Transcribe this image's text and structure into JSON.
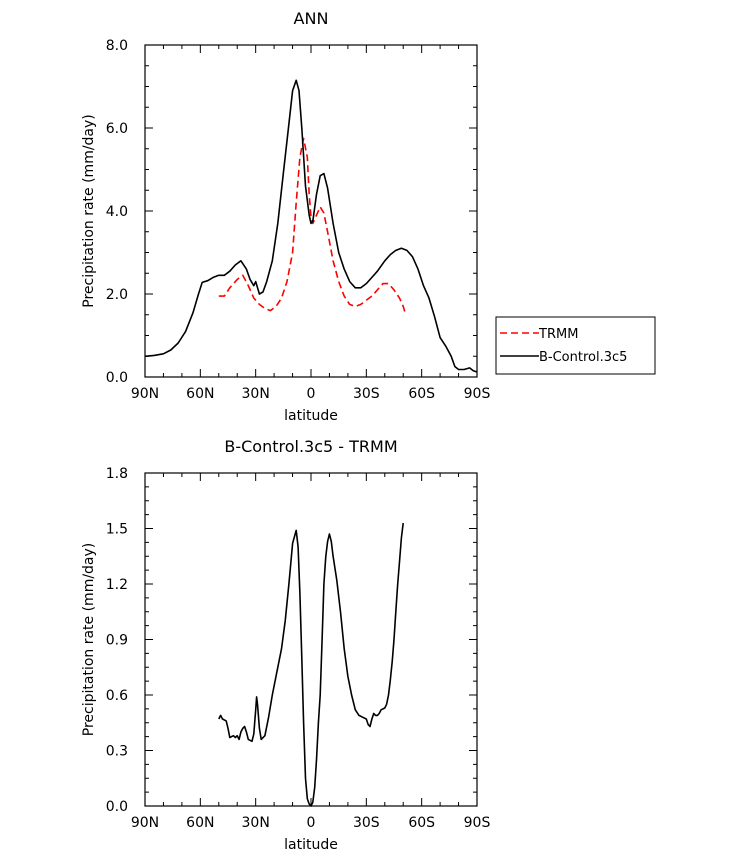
{
  "chart_data": [
    {
      "type": "line",
      "title": "ANN",
      "xlabel": "latitude",
      "ylabel": "Precipitation rate (mm/day)",
      "xlim": [
        90,
        -90
      ],
      "ylim": [
        0,
        8
      ],
      "x_ticks": [
        90,
        60,
        30,
        0,
        -30,
        -60,
        -90
      ],
      "x_tick_labels": [
        "90N",
        "60N",
        "30N",
        "0",
        "30S",
        "60S",
        "90S"
      ],
      "y_ticks": [
        0,
        2,
        4,
        6,
        8
      ],
      "y_tick_labels": [
        "0.0",
        "2.0",
        "4.0",
        "6.0",
        "8.0"
      ],
      "legend": "right",
      "series": [
        {
          "name": "TRMM",
          "color": "#ff0000",
          "dash": true,
          "points": [
            [
              50,
              1.95
            ],
            [
              47,
              1.95
            ],
            [
              44,
              2.15
            ],
            [
              40,
              2.35
            ],
            [
              37,
              2.45
            ],
            [
              34,
              2.2
            ],
            [
              31,
              1.9
            ],
            [
              28,
              1.75
            ],
            [
              25,
              1.65
            ],
            [
              22,
              1.6
            ],
            [
              19,
              1.7
            ],
            [
              16,
              1.9
            ],
            [
              13,
              2.3
            ],
            [
              10,
              3.0
            ],
            [
              8,
              4.2
            ],
            [
              6,
              5.3
            ],
            [
              4,
              5.75
            ],
            [
              2,
              5.3
            ],
            [
              1,
              4.4
            ],
            [
              0,
              3.85
            ],
            [
              -1,
              3.7
            ],
            [
              -3,
              3.9
            ],
            [
              -5,
              4.1
            ],
            [
              -7,
              3.95
            ],
            [
              -9,
              3.5
            ],
            [
              -12,
              2.8
            ],
            [
              -15,
              2.3
            ],
            [
              -18,
              1.95
            ],
            [
              -21,
              1.75
            ],
            [
              -24,
              1.7
            ],
            [
              -27,
              1.75
            ],
            [
              -30,
              1.85
            ],
            [
              -33,
              1.95
            ],
            [
              -36,
              2.1
            ],
            [
              -39,
              2.25
            ],
            [
              -42,
              2.25
            ],
            [
              -45,
              2.1
            ],
            [
              -48,
              1.9
            ],
            [
              -50,
              1.7
            ],
            [
              -51,
              1.55
            ]
          ]
        },
        {
          "name": "B-Control.3c5",
          "color": "#000000",
          "dash": false,
          "points": [
            [
              90,
              0.5
            ],
            [
              85,
              0.52
            ],
            [
              80,
              0.56
            ],
            [
              76,
              0.65
            ],
            [
              72,
              0.82
            ],
            [
              68,
              1.1
            ],
            [
              64,
              1.55
            ],
            [
              61,
              2.0
            ],
            [
              59,
              2.28
            ],
            [
              56,
              2.32
            ],
            [
              53,
              2.4
            ],
            [
              50,
              2.45
            ],
            [
              47,
              2.45
            ],
            [
              44,
              2.55
            ],
            [
              41,
              2.7
            ],
            [
              38,
              2.8
            ],
            [
              35,
              2.6
            ],
            [
              33,
              2.35
            ],
            [
              31,
              2.2
            ],
            [
              30,
              2.3
            ],
            [
              28,
              2.0
            ],
            [
              26,
              2.05
            ],
            [
              24,
              2.3
            ],
            [
              21,
              2.8
            ],
            [
              18,
              3.7
            ],
            [
              15,
              4.9
            ],
            [
              12,
              6.1
            ],
            [
              10,
              6.9
            ],
            [
              8,
              7.15
            ],
            [
              6.5,
              6.9
            ],
            [
              5,
              6.0
            ],
            [
              3,
              4.6
            ],
            [
              1,
              3.9
            ],
            [
              0,
              3.7
            ],
            [
              -1,
              3.75
            ],
            [
              -3,
              4.4
            ],
            [
              -5,
              4.85
            ],
            [
              -7,
              4.9
            ],
            [
              -9,
              4.55
            ],
            [
              -12,
              3.7
            ],
            [
              -15,
              3.0
            ],
            [
              -18,
              2.6
            ],
            [
              -21,
              2.3
            ],
            [
              -24,
              2.15
            ],
            [
              -27,
              2.15
            ],
            [
              -30,
              2.25
            ],
            [
              -33,
              2.4
            ],
            [
              -36,
              2.55
            ],
            [
              -40,
              2.8
            ],
            [
              -43,
              2.95
            ],
            [
              -46,
              3.05
            ],
            [
              -49,
              3.1
            ],
            [
              -52,
              3.05
            ],
            [
              -55,
              2.9
            ],
            [
              -58,
              2.6
            ],
            [
              -61,
              2.2
            ],
            [
              -64,
              1.9
            ],
            [
              -67,
              1.45
            ],
            [
              -70,
              0.95
            ],
            [
              -73,
              0.75
            ],
            [
              -76,
              0.5
            ],
            [
              -78,
              0.25
            ],
            [
              -80,
              0.18
            ],
            [
              -83,
              0.18
            ],
            [
              -86,
              0.22
            ],
            [
              -88,
              0.15
            ],
            [
              -90,
              0.12
            ]
          ]
        }
      ]
    },
    {
      "type": "line",
      "title": "B-Control.3c5 - TRMM",
      "xlabel": "latitude",
      "ylabel": "Precipitation rate (mm/day)",
      "xlim": [
        90,
        -90
      ],
      "ylim": [
        0,
        1.8
      ],
      "x_ticks": [
        90,
        60,
        30,
        0,
        -30,
        -60,
        -90
      ],
      "x_tick_labels": [
        "90N",
        "60N",
        "30N",
        "0",
        "30S",
        "60S",
        "90S"
      ],
      "y_ticks": [
        0,
        0.3,
        0.6,
        0.9,
        1.2,
        1.5,
        1.8
      ],
      "y_tick_labels": [
        "0.0",
        "0.3",
        "0.6",
        "0.9",
        "1.2",
        "1.5",
        "1.8"
      ],
      "series": [
        {
          "color": "#000000",
          "dash": false,
          "points": [
            [
              50,
              0.47
            ],
            [
              49,
              0.49
            ],
            [
              48,
              0.47
            ],
            [
              46,
              0.46
            ],
            [
              45,
              0.42
            ],
            [
              44,
              0.37
            ],
            [
              42,
              0.38
            ],
            [
              41,
              0.37
            ],
            [
              40,
              0.38
            ],
            [
              39,
              0.36
            ],
            [
              38,
              0.4
            ],
            [
              37,
              0.42
            ],
            [
              36,
              0.43
            ],
            [
              35,
              0.4
            ],
            [
              34,
              0.36
            ],
            [
              32,
              0.35
            ],
            [
              31,
              0.39
            ],
            [
              30,
              0.52
            ],
            [
              29.5,
              0.59
            ],
            [
              29,
              0.55
            ],
            [
              28,
              0.42
            ],
            [
              27,
              0.36
            ],
            [
              25,
              0.38
            ],
            [
              23,
              0.48
            ],
            [
              21,
              0.6
            ],
            [
              18,
              0.75
            ],
            [
              16,
              0.85
            ],
            [
              14,
              1.0
            ],
            [
              12,
              1.2
            ],
            [
              10,
              1.42
            ],
            [
              8,
              1.49
            ],
            [
              7,
              1.4
            ],
            [
              6,
              1.15
            ],
            [
              5,
              0.8
            ],
            [
              4,
              0.45
            ],
            [
              3,
              0.15
            ],
            [
              2,
              0.04
            ],
            [
              1,
              0.01
            ],
            [
              0,
              0.0
            ],
            [
              -1,
              0.02
            ],
            [
              -2,
              0.1
            ],
            [
              -3,
              0.25
            ],
            [
              -4,
              0.45
            ],
            [
              -5,
              0.6
            ],
            [
              -6,
              0.9
            ],
            [
              -7,
              1.2
            ],
            [
              -8,
              1.35
            ],
            [
              -9,
              1.43
            ],
            [
              -10,
              1.47
            ],
            [
              -11,
              1.43
            ],
            [
              -12,
              1.35
            ],
            [
              -14,
              1.22
            ],
            [
              -16,
              1.05
            ],
            [
              -18,
              0.85
            ],
            [
              -20,
              0.7
            ],
            [
              -22,
              0.6
            ],
            [
              -24,
              0.52
            ],
            [
              -26,
              0.49
            ],
            [
              -28,
              0.48
            ],
            [
              -30,
              0.47
            ],
            [
              -31,
              0.44
            ],
            [
              -32,
              0.43
            ],
            [
              -33,
              0.47
            ],
            [
              -34,
              0.5
            ],
            [
              -35,
              0.49
            ],
            [
              -36,
              0.49
            ],
            [
              -37,
              0.5
            ],
            [
              -38,
              0.52
            ],
            [
              -40,
              0.53
            ],
            [
              -41,
              0.55
            ],
            [
              -42,
              0.6
            ],
            [
              -43,
              0.68
            ],
            [
              -44,
              0.78
            ],
            [
              -45,
              0.9
            ],
            [
              -46,
              1.05
            ],
            [
              -47,
              1.2
            ],
            [
              -48,
              1.32
            ],
            [
              -49,
              1.45
            ],
            [
              -50,
              1.53
            ]
          ]
        }
      ]
    }
  ]
}
